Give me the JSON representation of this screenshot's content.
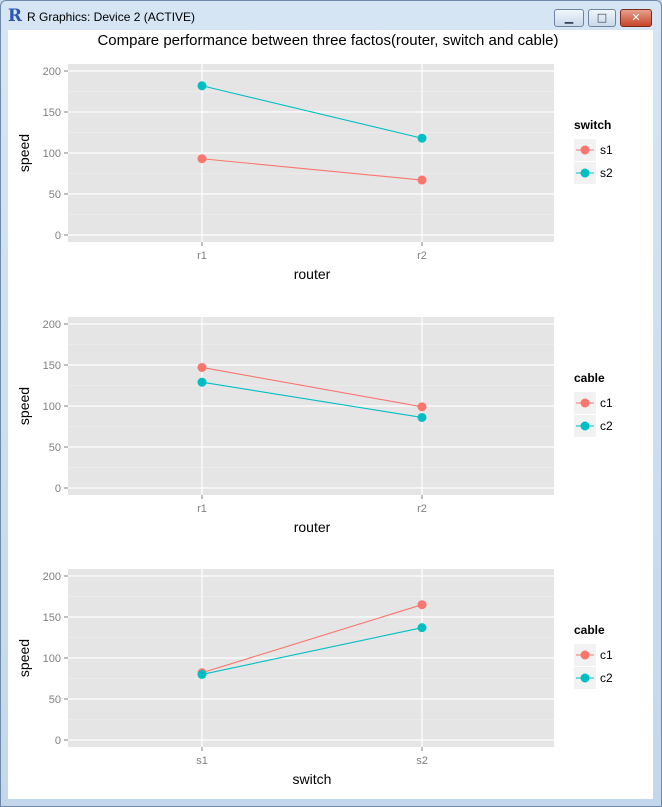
{
  "window": {
    "title": "R Graphics: Device 2 (ACTIVE)",
    "buttons": {
      "minimize": "▁",
      "maximize": "□",
      "close": "✕"
    }
  },
  "plot_title": "Compare performance between three factos(router, switch and cable)",
  "colors": {
    "series1": "#f8766d",
    "series2": "#00bfc4",
    "panel": "#e5e5e5",
    "grid": "#ffffff"
  },
  "chart_data": [
    {
      "type": "line",
      "categories": [
        "r1",
        "r2"
      ],
      "xlabel": "router",
      "ylabel": "speed",
      "ylim": [
        0,
        200
      ],
      "yticks": [
        0,
        50,
        100,
        150,
        200
      ],
      "legend_title": "switch",
      "legend_position": "right",
      "series": [
        {
          "name": "s1",
          "values": [
            93,
            67
          ]
        },
        {
          "name": "s2",
          "values": [
            182,
            118
          ]
        }
      ]
    },
    {
      "type": "line",
      "categories": [
        "r1",
        "r2"
      ],
      "xlabel": "router",
      "ylabel": "speed",
      "ylim": [
        0,
        200
      ],
      "yticks": [
        0,
        50,
        100,
        150,
        200
      ],
      "legend_title": "cable",
      "legend_position": "right",
      "series": [
        {
          "name": "c1",
          "values": [
            147,
            99
          ]
        },
        {
          "name": "c2",
          "values": [
            129,
            86
          ]
        }
      ]
    },
    {
      "type": "line",
      "categories": [
        "s1",
        "s2"
      ],
      "xlabel": "switch",
      "ylabel": "speed",
      "ylim": [
        0,
        200
      ],
      "yticks": [
        0,
        50,
        100,
        150,
        200
      ],
      "legend_title": "cable",
      "legend_position": "right",
      "series": [
        {
          "name": "c1",
          "values": [
            82,
            165
          ]
        },
        {
          "name": "c2",
          "values": [
            80,
            137
          ]
        }
      ]
    }
  ]
}
